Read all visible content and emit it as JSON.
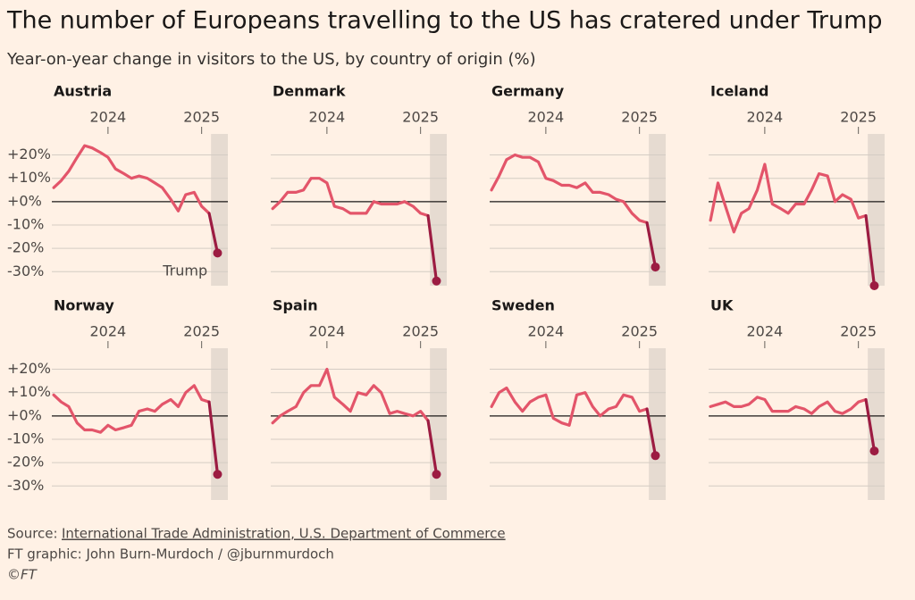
{
  "chart_data": {
    "type": "line",
    "title": "The number of Europeans travelling to the US has cratered under Trump",
    "subtitle": "Year-on-year change in visitors to the US, by country of origin (%)",
    "x": [
      2023.42,
      2023.5,
      2023.58,
      2023.67,
      2023.75,
      2023.83,
      2023.92,
      2024.0,
      2024.08,
      2024.17,
      2024.25,
      2024.33,
      2024.42,
      2024.5,
      2024.58,
      2024.67,
      2024.75,
      2024.83,
      2024.92,
      2025.0,
      2025.08,
      2025.17
    ],
    "xlim": [
      2023.4,
      2025.28
    ],
    "xticks": [
      2024,
      2025
    ],
    "ylim": [
      -36,
      29
    ],
    "yticks": [
      {
        "value": 20,
        "label": "+20%"
      },
      {
        "value": 10,
        "label": "+10%"
      },
      {
        "value": 0,
        "label": "+0%"
      },
      {
        "value": -10,
        "label": "-10%"
      },
      {
        "value": -20,
        "label": "-20%"
      },
      {
        "value": -30,
        "label": "-30%"
      }
    ],
    "color": "#e3556a",
    "highlight_color": "#9c1c42",
    "shade": [
      2025.1,
      2025.28
    ],
    "shade_color": "#e6dbd1",
    "annotation": "Trump",
    "series": [
      {
        "name": "Austria",
        "values": [
          6,
          9,
          13,
          19,
          24,
          23,
          21,
          19,
          14,
          12,
          10,
          11,
          10,
          8,
          6,
          1,
          -4,
          3,
          4,
          -2,
          -5,
          -22
        ]
      },
      {
        "name": "Denmark",
        "values": [
          -3,
          0,
          4,
          4,
          5,
          10,
          10,
          8,
          -2,
          -3,
          -5,
          -5,
          -5,
          0,
          -1,
          -1,
          -1,
          0,
          -2,
          -5,
          -6,
          -34
        ]
      },
      {
        "name": "Germany",
        "values": [
          5,
          11,
          18,
          20,
          19,
          19,
          17,
          10,
          9,
          7,
          7,
          6,
          8,
          4,
          4,
          3,
          1,
          0,
          -5,
          -8,
          -9,
          -28
        ]
      },
      {
        "name": "Iceland",
        "values": [
          -8,
          8,
          -2,
          -13,
          -5,
          -3,
          5,
          16,
          -1,
          -3,
          -5,
          -1,
          -1,
          5,
          12,
          11,
          0,
          3,
          1,
          -7,
          -6,
          -36
        ]
      },
      {
        "name": "Norway",
        "values": [
          9,
          6,
          4,
          -3,
          -6,
          -6,
          -7,
          -4,
          -6,
          -5,
          -4,
          2,
          3,
          2,
          5,
          7,
          4,
          10,
          13,
          7,
          6,
          -25
        ]
      },
      {
        "name": "Spain",
        "values": [
          -3,
          0,
          2,
          4,
          10,
          13,
          13,
          20,
          8,
          5,
          2,
          10,
          9,
          13,
          10,
          1,
          2,
          1,
          0,
          2,
          -2,
          -25
        ]
      },
      {
        "name": "Sweden",
        "values": [
          4,
          10,
          12,
          6,
          2,
          6,
          8,
          9,
          -1,
          -3,
          -4,
          9,
          10,
          4,
          0,
          3,
          4,
          9,
          8,
          2,
          3,
          -17
        ]
      },
      {
        "name": "UK",
        "values": [
          4,
          5,
          6,
          4,
          4,
          5,
          8,
          7,
          2,
          2,
          2,
          4,
          3,
          1,
          4,
          6,
          2,
          1,
          3,
          6,
          7,
          -15
        ]
      }
    ]
  },
  "source": {
    "label": "Source:",
    "link": "International Trade Administration, U.S. Department of Commerce"
  },
  "credit": "FT graphic: John Burn-Murdoch / @jburnmurdoch",
  "copyright": "©FT"
}
